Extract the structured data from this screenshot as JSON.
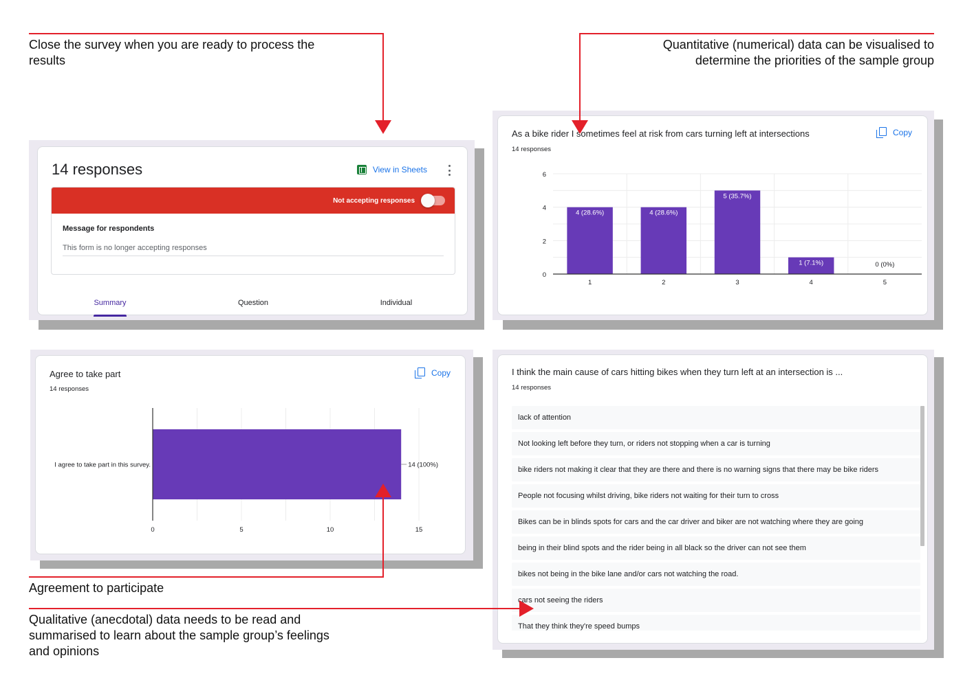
{
  "annotations": {
    "close_survey": [
      "Close the survey when you are ready to process the",
      "results"
    ],
    "quantitative": [
      "Quantitative (numerical) data can be visualised to",
      "determine the priorities of the sample group"
    ],
    "agreement": "Agreement to participate",
    "qualitative": [
      "Qualitative (anecdotal) data needs to be read and",
      "summarised to learn about the sample group’s feelings",
      "and opinions"
    ]
  },
  "colors": {
    "accent_red": "#e3202a",
    "bar_purple": "#673ab7",
    "link_blue": "#1a73e8",
    "banner_red": "#d93025"
  },
  "responses_panel": {
    "title": "14 responses",
    "view_in_sheets": "View in Sheets",
    "menu_icon": "more-vert-icon",
    "banner": "Not accepting responses",
    "accepting_responses": false,
    "message_label": "Message for respondents",
    "message_text": "This form is no longer accepting responses",
    "tabs": [
      {
        "label": "Summary",
        "active": true
      },
      {
        "label": "Question",
        "active": false
      },
      {
        "label": "Individual",
        "active": false
      }
    ]
  },
  "risk_question": {
    "title": "As a bike rider I sometimes feel at risk from cars turning left at intersections",
    "responses": "14 responses",
    "copy": "Copy"
  },
  "agree_question": {
    "title": "Agree to take part",
    "responses": "14 responses",
    "copy": "Copy"
  },
  "cause_question": {
    "title": "I think the main cause of cars hitting bikes when they turn left at an intersection is ...",
    "responses": "14 responses",
    "answers": [
      "lack of attention",
      "Not looking left before they turn, or riders not stopping when a car is turning",
      "bike riders not making it clear that they are there and there is no warning signs that there may be bike riders",
      "People not focusing whilst driving, bike riders not waiting for their turn to cross",
      "Bikes can be in blinds spots for cars and the car driver and biker are not watching where they are going",
      "being in their blind spots and the rider being in all black so the driver can not see them",
      "bikes not being in the bike lane and/or cars not watching the road.",
      "cars not seeing the riders",
      "That they think they're speed bumps"
    ]
  },
  "chart_data": [
    {
      "type": "bar",
      "categories": [
        "1",
        "2",
        "3",
        "4",
        "5"
      ],
      "values": [
        4,
        4,
        5,
        1,
        0
      ],
      "data_labels": [
        "4 (28.6%)",
        "4 (28.6%)",
        "5 (35.7%)",
        "1 (7.1%)",
        "0 (0%)"
      ],
      "ylim": [
        0,
        6
      ],
      "yticks": [
        0,
        2,
        4,
        6
      ],
      "color": "#673ab7",
      "grid": true
    },
    {
      "type": "bar",
      "orientation": "horizontal",
      "categories": [
        "I agree to take part in this survey."
      ],
      "values": [
        14
      ],
      "data_labels": [
        "14 (100%)"
      ],
      "xlim": [
        0,
        15
      ],
      "xticks": [
        0,
        5,
        10,
        15
      ],
      "color": "#673ab7",
      "grid": true
    }
  ]
}
